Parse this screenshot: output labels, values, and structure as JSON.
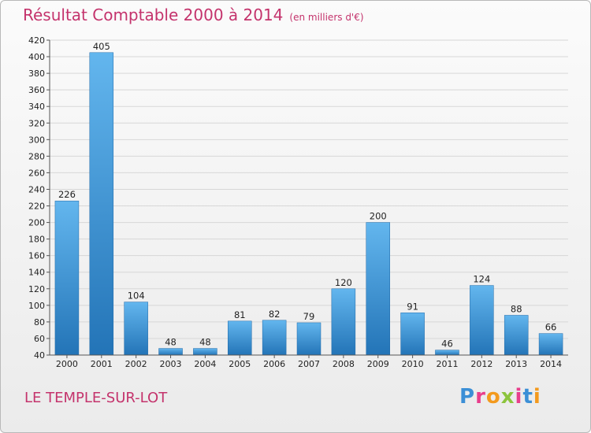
{
  "title": "Résultat Comptable 2000 à 2014",
  "unit": "(en milliers d'€)",
  "commune": "LE TEMPLE-SUR-LOT",
  "logo": {
    "text": "Proxiti",
    "letter_colors": [
      "#3b8fd6",
      "#e83e8c",
      "#f39a1e",
      "#8cc43d",
      "#e83e8c",
      "#3b8fd6",
      "#f39a1e"
    ]
  },
  "colors": {
    "title": "#c4336c",
    "bar_top": "#63b6ee",
    "bar_bottom": "#2374b7",
    "grid": "#d7d7d7"
  },
  "chart_data": {
    "type": "bar",
    "categories": [
      "2000",
      "2001",
      "2002",
      "2003",
      "2004",
      "2005",
      "2006",
      "2007",
      "2008",
      "2009",
      "2010",
      "2011",
      "2012",
      "2013",
      "2014"
    ],
    "values": [
      226,
      405,
      104,
      48,
      48,
      81,
      82,
      79,
      120,
      200,
      91,
      46,
      124,
      88,
      66
    ],
    "ylim": [
      40,
      420
    ],
    "yticks": [
      40,
      60,
      80,
      100,
      120,
      140,
      160,
      180,
      200,
      220,
      240,
      260,
      280,
      300,
      320,
      340,
      360,
      380,
      400,
      420
    ],
    "grid": true,
    "xlabel": "",
    "ylabel": ""
  }
}
